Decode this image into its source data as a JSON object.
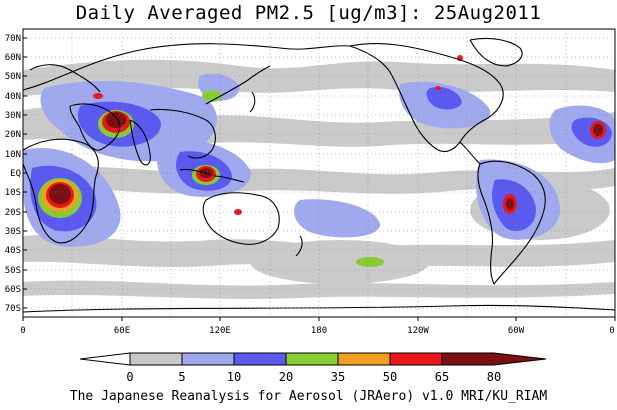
{
  "title": "Daily Averaged PM2.5 [ug/m3]: 25Aug2011",
  "footer": "The Japanese Reanalysis for Aerosol (JRAero) v1.0 MRI/KU_RIAM",
  "map": {
    "projection": "equirectangular, centered 180",
    "grid": "dotted",
    "lat_labels": [
      "70N",
      "60N",
      "50N",
      "40N",
      "30N",
      "20N",
      "10N",
      "EQ",
      "10S",
      "20S",
      "30S",
      "40S",
      "50S",
      "60S",
      "70S"
    ],
    "lon_labels": [
      "0",
      "60E",
      "120E",
      "180",
      "120W",
      "60W",
      "0"
    ]
  },
  "colorbar": {
    "colors": [
      "#ffffff",
      "#c8c8c8",
      "#a0a8ee",
      "#5a5af0",
      "#88cc33",
      "#f0a020",
      "#e81818",
      "#7a1010"
    ],
    "ticks": [
      "0",
      "5",
      "10",
      "20",
      "35",
      "50",
      "65",
      "80"
    ]
  }
}
